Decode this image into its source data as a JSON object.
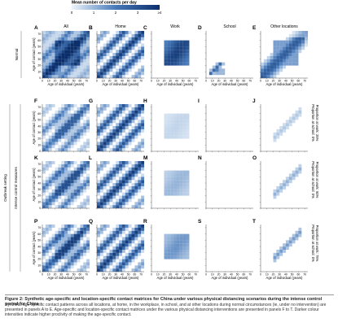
{
  "legend": {
    "title": "Mean number of contacts per day",
    "ticks": [
      "0",
      "1",
      "2",
      "3",
      "≥4"
    ],
    "color_low": "#eef5fb",
    "color_high": "#0b2e6b"
  },
  "columns": [
    "All",
    "Home",
    "Work",
    "School",
    "Other locations"
  ],
  "row_groups": {
    "normal": "Normal",
    "outbreak": "Outbreak setting",
    "intense": "Intense control measures"
  },
  "right_labels": [
    "Proportion at work: 25%\nProportion at school: 0%",
    "Proportion at work: 50%\nProportion at school: 0%",
    "Proportion at work: 75%\nProportion at school: 0%"
  ],
  "axis": {
    "xlabel": "Age of individual (years)",
    "ylabel": "Age of contact (years)",
    "ticks": [
      "0",
      "10",
      "20",
      "30",
      "40",
      "50",
      "60",
      "70"
    ]
  },
  "chart_data": {
    "type": "heatmap",
    "title": "",
    "x_range": [
      0,
      75
    ],
    "y_range": [
      0,
      75
    ],
    "bin_width_years": 5,
    "panels": [
      {
        "letter": "A",
        "row": 0,
        "col": 0,
        "kind": "all",
        "scale": 1.0
      },
      {
        "letter": "B",
        "row": 0,
        "col": 1,
        "kind": "home",
        "scale": 1.0
      },
      {
        "letter": "C",
        "row": 0,
        "col": 2,
        "kind": "work",
        "scale": 1.0
      },
      {
        "letter": "D",
        "row": 0,
        "col": 3,
        "kind": "school",
        "scale": 1.0
      },
      {
        "letter": "E",
        "row": 0,
        "col": 4,
        "kind": "other",
        "scale": 1.0
      },
      {
        "letter": "F",
        "row": 1,
        "col": 0,
        "kind": "all_intense",
        "scale": 0.7
      },
      {
        "letter": "G",
        "row": 1,
        "col": 1,
        "kind": "home",
        "scale": 1.0
      },
      {
        "letter": "H",
        "row": 1,
        "col": 2,
        "kind": "work",
        "scale": 0.15
      },
      {
        "letter": "I",
        "row": 1,
        "col": 3,
        "kind": "empty",
        "scale": 0
      },
      {
        "letter": "J",
        "row": 1,
        "col": 4,
        "kind": "other_diag",
        "scale": 0.3
      },
      {
        "letter": "K",
        "row": 2,
        "col": 0,
        "kind": "all_intense",
        "scale": 0.8
      },
      {
        "letter": "L",
        "row": 2,
        "col": 1,
        "kind": "home",
        "scale": 1.0
      },
      {
        "letter": "M",
        "row": 2,
        "col": 2,
        "kind": "work",
        "scale": 0.3
      },
      {
        "letter": "N",
        "row": 2,
        "col": 3,
        "kind": "empty",
        "scale": 0
      },
      {
        "letter": "O",
        "row": 2,
        "col": 4,
        "kind": "other_diag",
        "scale": 0.45
      },
      {
        "letter": "P",
        "row": 3,
        "col": 0,
        "kind": "all_intense",
        "scale": 0.9
      },
      {
        "letter": "Q",
        "row": 3,
        "col": 1,
        "kind": "home",
        "scale": 1.0
      },
      {
        "letter": "R",
        "row": 3,
        "col": 2,
        "kind": "work",
        "scale": 0.45
      },
      {
        "letter": "S",
        "row": 3,
        "col": 3,
        "kind": "empty",
        "scale": 0
      },
      {
        "letter": "T",
        "row": 3,
        "col": 4,
        "kind": "other_diag",
        "scale": 0.6
      }
    ]
  },
  "caption": {
    "title": "Figure 2: Synthetic age-specific and location-specific contact matrices for China under various physical distancing scenarios during the intense control period for China",
    "text": "Synthetic age-specific contact patterns across all locations, at home, in the workplace, in school, and at other locations during normal circumstances (ie, under no intervention) are presented in panels A to E. Age-specific and location-specific contact matrices under the various physical distancing interventions are presented in panels F to T. Darker colour intensities indicate higher proclivity of making the age-specific contact."
  }
}
